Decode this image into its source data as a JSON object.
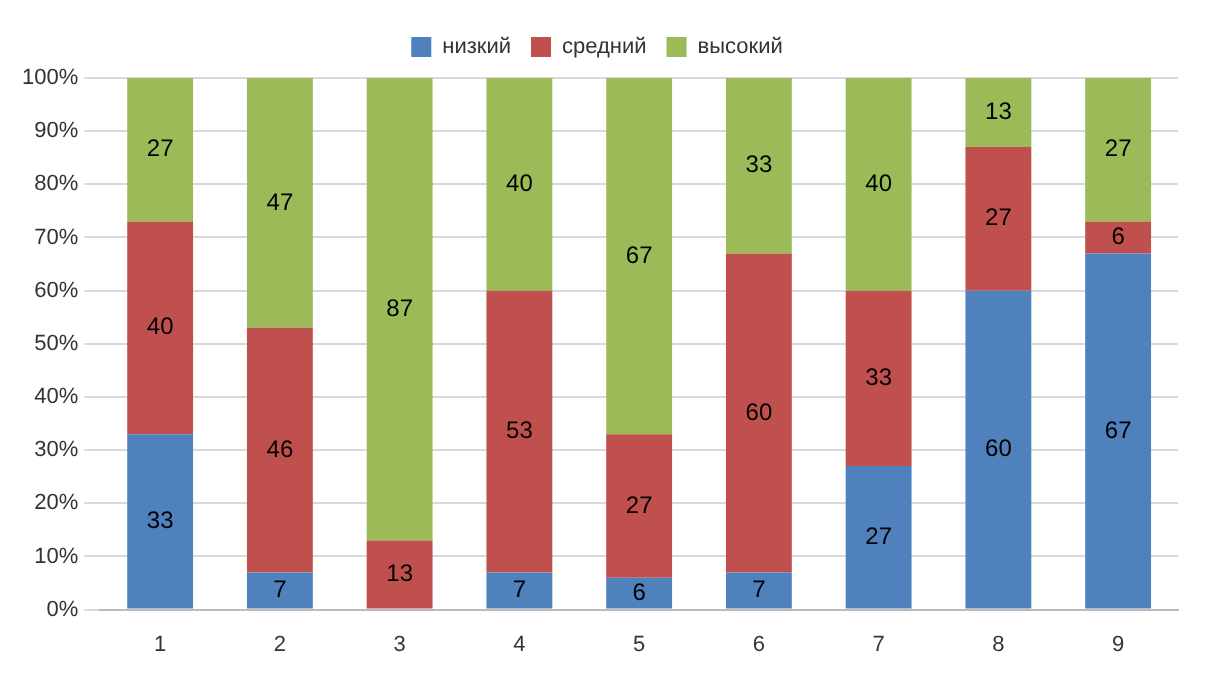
{
  "chart_data": {
    "type": "bar",
    "stacked": true,
    "categories": [
      "1",
      "2",
      "3",
      "4",
      "5",
      "6",
      "7",
      "8",
      "9"
    ],
    "series": [
      {
        "name": "низкий",
        "color": "#4f81bd",
        "values": [
          33,
          7,
          null,
          7,
          6,
          7,
          27,
          60,
          67
        ]
      },
      {
        "name": "средний",
        "color": "#c0504d",
        "values": [
          40,
          46,
          13,
          53,
          27,
          60,
          33,
          27,
          6
        ]
      },
      {
        "name": "высокий",
        "color": "#9bbb59",
        "values": [
          27,
          47,
          87,
          40,
          67,
          33,
          40,
          13,
          27
        ]
      }
    ],
    "ylim": [
      0,
      100
    ],
    "yticks": [
      {
        "value": 0,
        "label": "0%"
      },
      {
        "value": 10,
        "label": "10%"
      },
      {
        "value": 20,
        "label": "20%"
      },
      {
        "value": 30,
        "label": "30%"
      },
      {
        "value": 40,
        "label": "40%"
      },
      {
        "value": 50,
        "label": "50%"
      },
      {
        "value": 60,
        "label": "60%"
      },
      {
        "value": 70,
        "label": "70%"
      },
      {
        "value": 80,
        "label": "80%"
      },
      {
        "value": 90,
        "label": "90%"
      },
      {
        "value": 100,
        "label": "100%"
      }
    ],
    "grid": "y",
    "legend": "top",
    "data_labels": true
  }
}
